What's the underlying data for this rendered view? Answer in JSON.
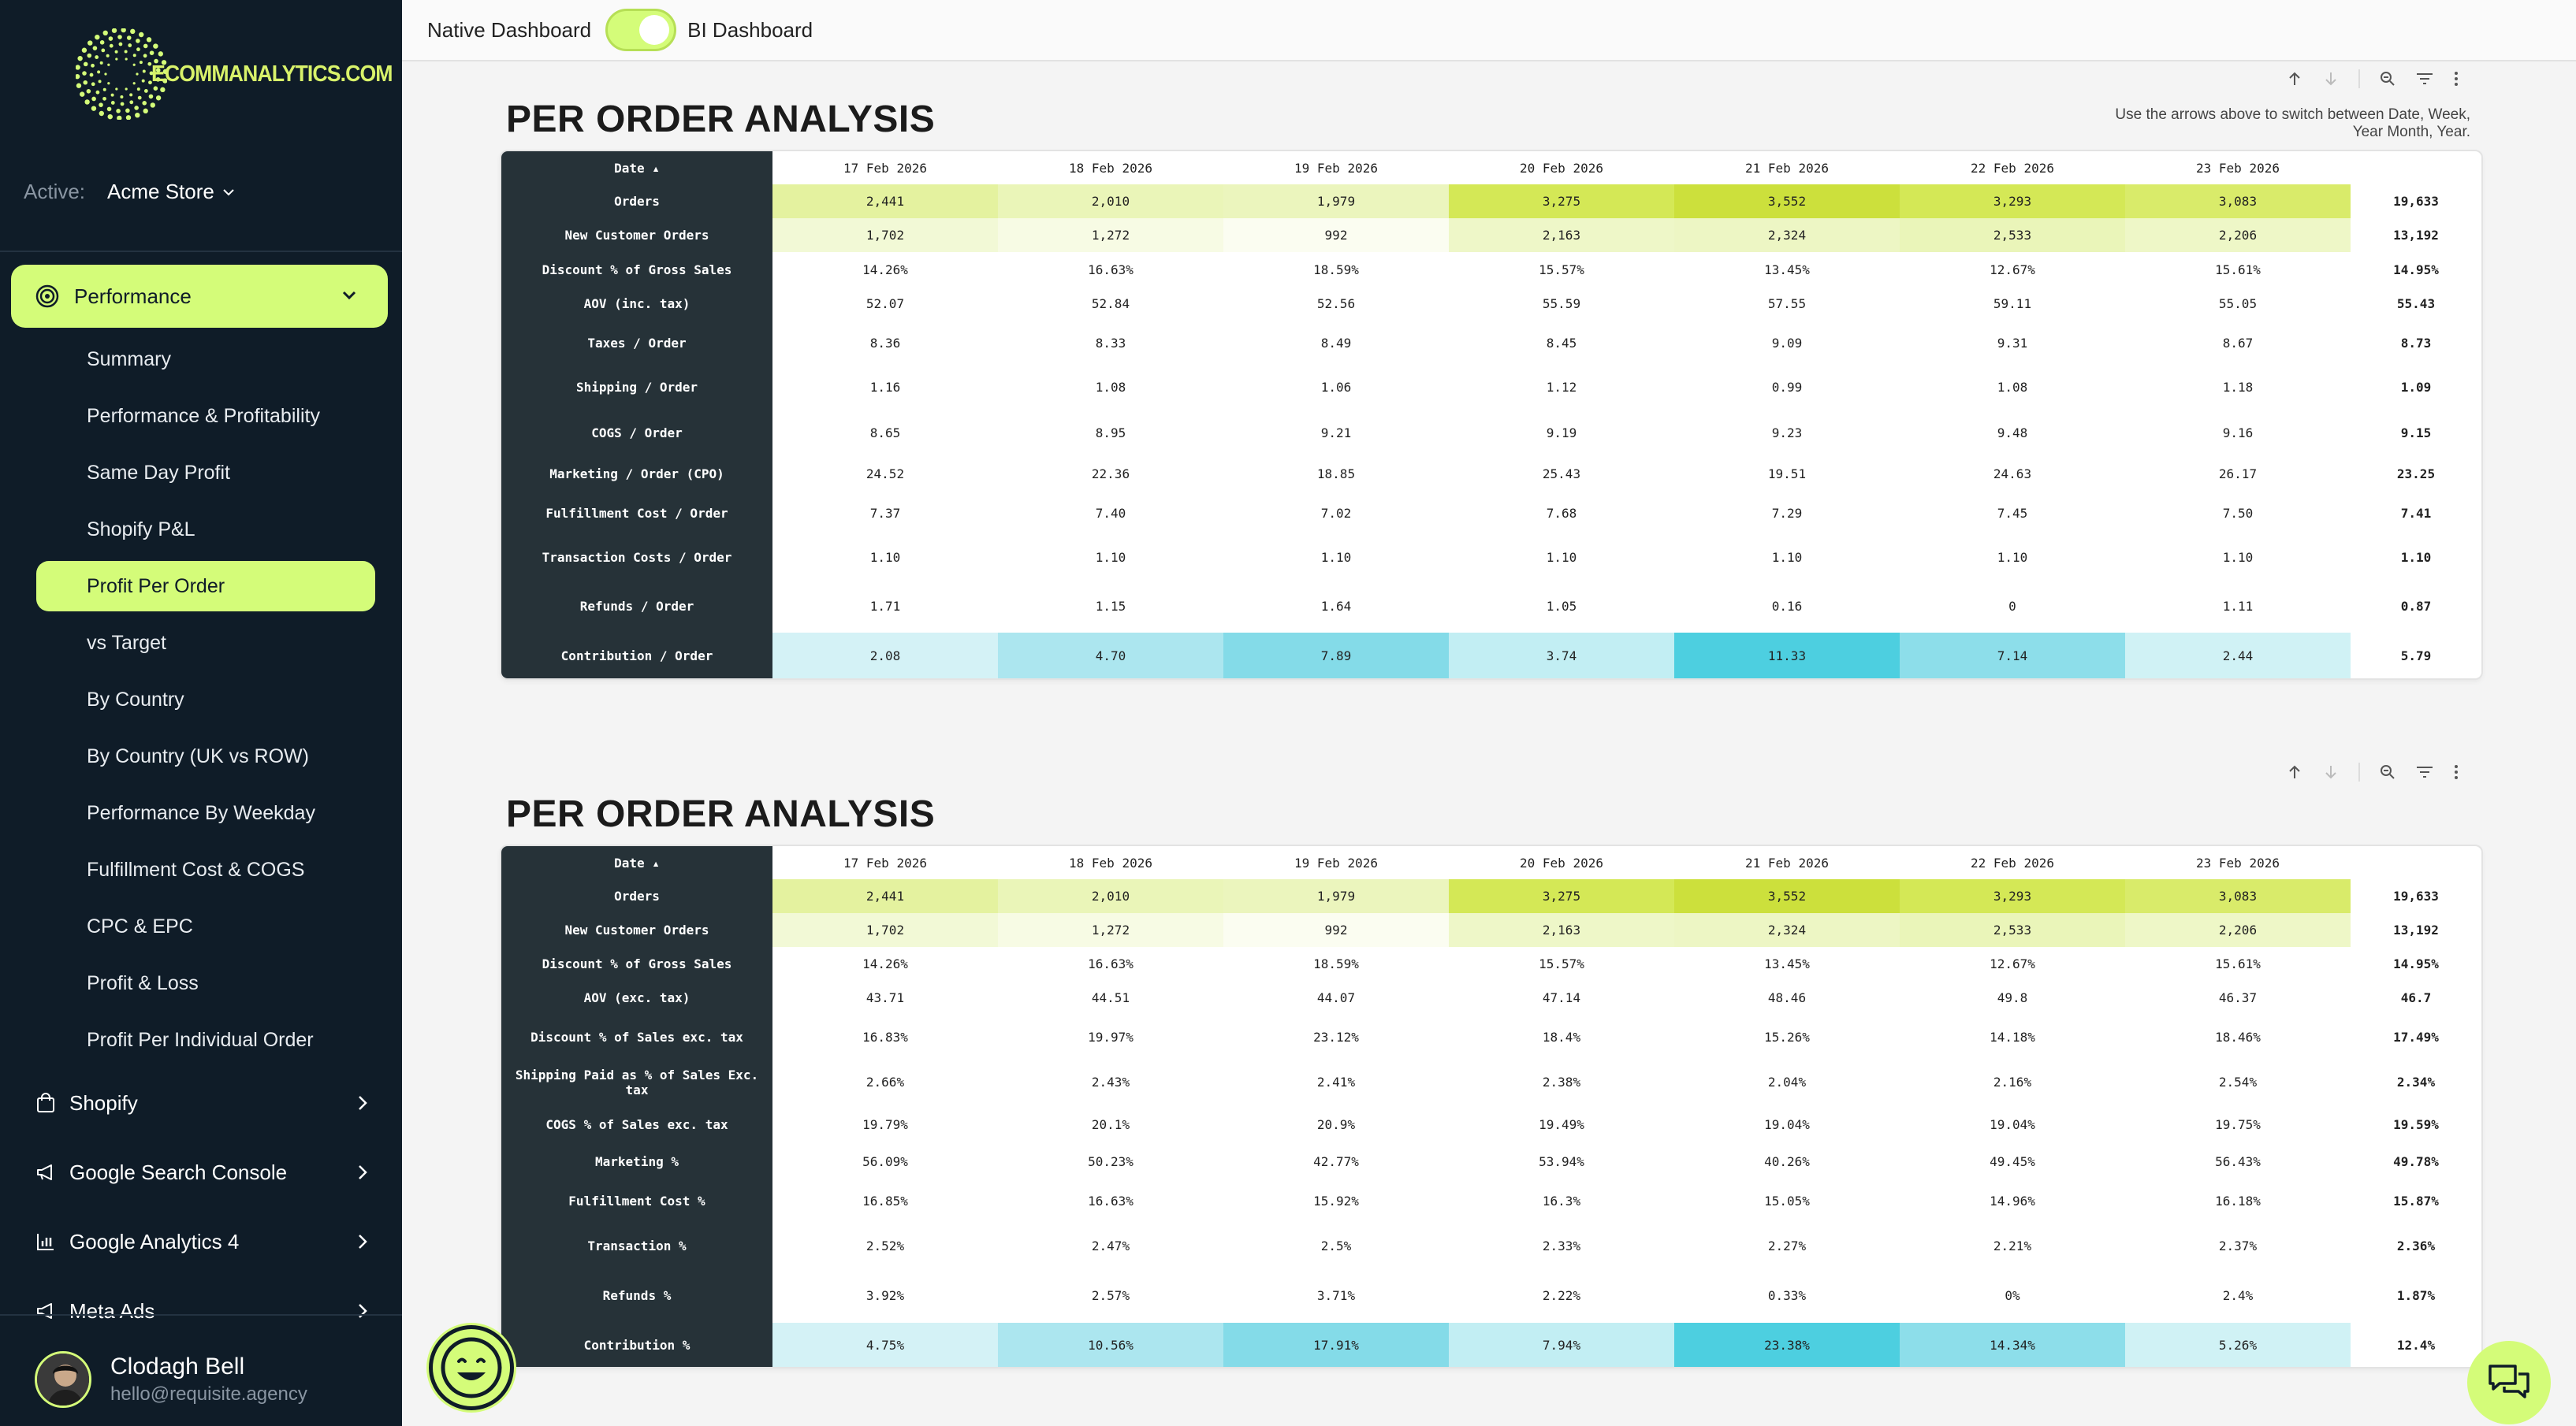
{
  "sidebar": {
    "logo_text": "ECOMMANALYTICS.COM",
    "active_label": "Active:",
    "store_name": "Acme Store",
    "performance_label": "Performance",
    "subitems": [
      "Summary",
      "Performance & Profitability",
      "Same Day Profit",
      "Shopify P&L",
      "Profit Per Order",
      "vs Target",
      "By Country",
      "By Country (UK vs ROW)",
      "Performance By Weekday",
      "Fulfillment Cost & COGS",
      "CPC & EPC",
      "Profit & Loss",
      "Profit Per Individual Order"
    ],
    "active_subitem": "Profit Per Order",
    "groups": [
      "Shopify",
      "Google Search Console",
      "Google Analytics 4",
      "Meta Ads"
    ],
    "user_name": "Clodagh Bell",
    "user_email": "hello@requisite.agency"
  },
  "topbar": {
    "native_label": "Native Dashboard",
    "bi_label": "BI Dashboard",
    "bi_enabled": true
  },
  "colors": {
    "accent": "#d4fc79",
    "sidebar_bg": "#0f1c28",
    "row_header_bg": "#263238"
  },
  "panels": [
    {
      "title": "PER ORDER ANALYSIS",
      "hint": "Use the arrows above to switch between Date, Week, Year Month, Year.",
      "date_header": "Date ▴",
      "dates": [
        "17 Feb 2026",
        "18 Feb 2026",
        "19 Feb 2026",
        "20 Feb 2026",
        "21 Feb 2026",
        "22 Feb 2026",
        "23 Feb 2026"
      ],
      "rows": [
        {
          "label": "Orders",
          "values": [
            "2,441",
            "2,010",
            "1,979",
            "3,275",
            "3,552",
            "3,293",
            "3,083"
          ],
          "total": "19,633",
          "heat": "green",
          "colors": [
            "#e4f29f",
            "#eaf5b8",
            "#ebf5bd",
            "#d4e856",
            "#cce03c",
            "#d4e856",
            "#d9eb6a"
          ]
        },
        {
          "label": "New Customer Orders",
          "values": [
            "1,702",
            "1,272",
            "992",
            "2,163",
            "2,324",
            "2,533",
            "2,206"
          ],
          "total": "13,192",
          "heat": "green",
          "colors": [
            "#f2f9d6",
            "#f7fbe4",
            "#fbfdf1",
            "#eef7c8",
            "#edf6c4",
            "#eaf5b9",
            "#eef7c7"
          ]
        },
        {
          "label": "Discount % of Gross Sales",
          "values": [
            "14.26%",
            "16.63%",
            "18.59%",
            "15.57%",
            "13.45%",
            "12.67%",
            "15.61%"
          ],
          "total": "14.95%"
        },
        {
          "label": "AOV (inc. tax)",
          "values": [
            "52.07",
            "52.84",
            "52.56",
            "55.59",
            "57.55",
            "59.11",
            "55.05"
          ],
          "total": "55.43"
        },
        {
          "label": "Taxes / Order",
          "values": [
            "8.36",
            "8.33",
            "8.49",
            "8.45",
            "9.09",
            "9.31",
            "8.67"
          ],
          "total": "8.73"
        },
        {
          "label": "Shipping / Order",
          "values": [
            "1.16",
            "1.08",
            "1.06",
            "1.12",
            "0.99",
            "1.08",
            "1.18"
          ],
          "total": "1.09"
        },
        {
          "label": "COGS / Order",
          "values": [
            "8.65",
            "8.95",
            "9.21",
            "9.19",
            "9.23",
            "9.48",
            "9.16"
          ],
          "total": "9.15"
        },
        {
          "label": "Marketing / Order (CPO)",
          "values": [
            "24.52",
            "22.36",
            "18.85",
            "25.43",
            "19.51",
            "24.63",
            "26.17"
          ],
          "total": "23.25"
        },
        {
          "label": "Fulfillment Cost / Order",
          "values": [
            "7.37",
            "7.40",
            "7.02",
            "7.68",
            "7.29",
            "7.45",
            "7.50"
          ],
          "total": "7.41"
        },
        {
          "label": "Transaction Costs / Order",
          "values": [
            "1.10",
            "1.10",
            "1.10",
            "1.10",
            "1.10",
            "1.10",
            "1.10"
          ],
          "total": "1.10"
        },
        {
          "label": "Refunds / Order",
          "values": [
            "1.71",
            "1.15",
            "1.64",
            "1.05",
            "0.16",
            "0",
            "1.11"
          ],
          "total": "0.87"
        },
        {
          "label": "Contribution / Order",
          "values": [
            "2.08",
            "4.70",
            "7.89",
            "3.74",
            "11.33",
            "7.14",
            "2.44"
          ],
          "total": "5.79",
          "heat": "cyan",
          "colors": [
            "#d4f2f6",
            "#ace6ef",
            "#84dbe8",
            "#c2eef3",
            "#4dcfe0",
            "#8ddeea",
            "#d0f2f5"
          ]
        }
      ]
    },
    {
      "title": "PER ORDER ANALYSIS",
      "date_header": "Date ▴",
      "dates": [
        "17 Feb 2026",
        "18 Feb 2026",
        "19 Feb 2026",
        "20 Feb 2026",
        "21 Feb 2026",
        "22 Feb 2026",
        "23 Feb 2026"
      ],
      "rows": [
        {
          "label": "Orders",
          "values": [
            "2,441",
            "2,010",
            "1,979",
            "3,275",
            "3,552",
            "3,293",
            "3,083"
          ],
          "total": "19,633",
          "heat": "green",
          "colors": [
            "#e4f29f",
            "#eaf5b8",
            "#ebf5bd",
            "#d4e856",
            "#cce03c",
            "#d4e856",
            "#d9eb6a"
          ]
        },
        {
          "label": "New Customer Orders",
          "values": [
            "1,702",
            "1,272",
            "992",
            "2,163",
            "2,324",
            "2,533",
            "2,206"
          ],
          "total": "13,192",
          "heat": "green",
          "colors": [
            "#f2f9d6",
            "#f7fbe4",
            "#fbfdf1",
            "#eef7c8",
            "#edf6c4",
            "#eaf5b9",
            "#eef7c7"
          ]
        },
        {
          "label": "Discount % of Gross Sales",
          "values": [
            "14.26%",
            "16.63%",
            "18.59%",
            "15.57%",
            "13.45%",
            "12.67%",
            "15.61%"
          ],
          "total": "14.95%"
        },
        {
          "label": "AOV (exc. tax)",
          "values": [
            "43.71",
            "44.51",
            "44.07",
            "47.14",
            "48.46",
            "49.8",
            "46.37"
          ],
          "total": "46.7"
        },
        {
          "label": "Discount % of Sales exc. tax",
          "values": [
            "16.83%",
            "19.97%",
            "23.12%",
            "18.4%",
            "15.26%",
            "14.18%",
            "18.46%"
          ],
          "total": "17.49%"
        },
        {
          "label": "Shipping Paid as % of Sales Exc. tax",
          "values": [
            "2.66%",
            "2.43%",
            "2.41%",
            "2.38%",
            "2.04%",
            "2.16%",
            "2.54%"
          ],
          "total": "2.34%"
        },
        {
          "label": "COGS % of Sales exc. tax",
          "values": [
            "19.79%",
            "20.1%",
            "20.9%",
            "19.49%",
            "19.04%",
            "19.04%",
            "19.75%"
          ],
          "total": "19.59%"
        },
        {
          "label": "Marketing %",
          "values": [
            "56.09%",
            "50.23%",
            "42.77%",
            "53.94%",
            "40.26%",
            "49.45%",
            "56.43%"
          ],
          "total": "49.78%"
        },
        {
          "label": "Fulfillment Cost %",
          "values": [
            "16.85%",
            "16.63%",
            "15.92%",
            "16.3%",
            "15.05%",
            "14.96%",
            "16.18%"
          ],
          "total": "15.87%"
        },
        {
          "label": "Transaction %",
          "values": [
            "2.52%",
            "2.47%",
            "2.5%",
            "2.33%",
            "2.27%",
            "2.21%",
            "2.37%"
          ],
          "total": "2.36%"
        },
        {
          "label": "Refunds %",
          "values": [
            "3.92%",
            "2.57%",
            "3.71%",
            "2.22%",
            "0.33%",
            "0%",
            "2.4%"
          ],
          "total": "1.87%"
        },
        {
          "label": "Contribution %",
          "values": [
            "4.75%",
            "10.56%",
            "17.91%",
            "7.94%",
            "23.38%",
            "14.34%",
            "5.26%"
          ],
          "total": "12.4%",
          "heat": "cyan",
          "colors": [
            "#d4f2f6",
            "#ace6ef",
            "#84dbe8",
            "#c2eef3",
            "#4dcfe0",
            "#8ddeea",
            "#d0f2f5"
          ]
        }
      ]
    }
  ]
}
